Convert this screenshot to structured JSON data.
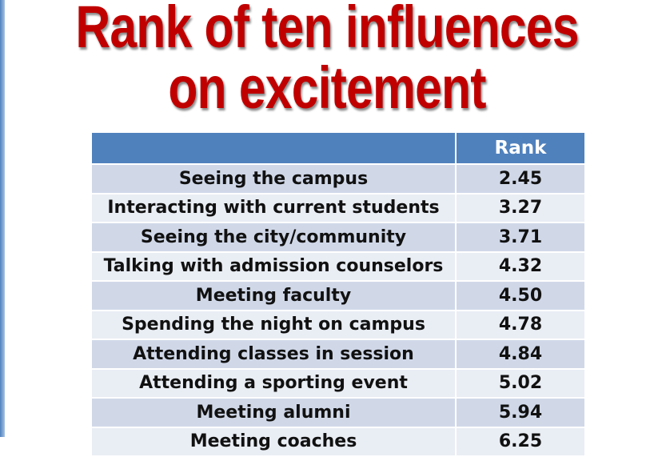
{
  "title": {
    "line1": "Rank of ten influences",
    "line2": "on excitement"
  },
  "table": {
    "headers": [
      "",
      "Rank"
    ],
    "rows": [
      {
        "label": "Seeing the campus",
        "rank": "2.45"
      },
      {
        "label": "Interacting with current students",
        "rank": "3.27"
      },
      {
        "label": "Seeing the city/community",
        "rank": "3.71"
      },
      {
        "label": "Talking with admission counselors",
        "rank": "4.32"
      },
      {
        "label": "Meeting faculty",
        "rank": "4.50"
      },
      {
        "label": "Spending the night on campus",
        "rank": "4.78"
      },
      {
        "label": "Attending classes in session",
        "rank": "4.84"
      },
      {
        "label": "Attending a sporting event",
        "rank": "5.02"
      },
      {
        "label": "Meeting alumni",
        "rank": "5.94"
      },
      {
        "label": "Meeting coaches",
        "rank": "6.25"
      }
    ]
  },
  "colors": {
    "title": "#c00000",
    "header": "#4f81bd",
    "row_odd": "#d0d8e8",
    "row_even": "#e9edf4"
  }
}
